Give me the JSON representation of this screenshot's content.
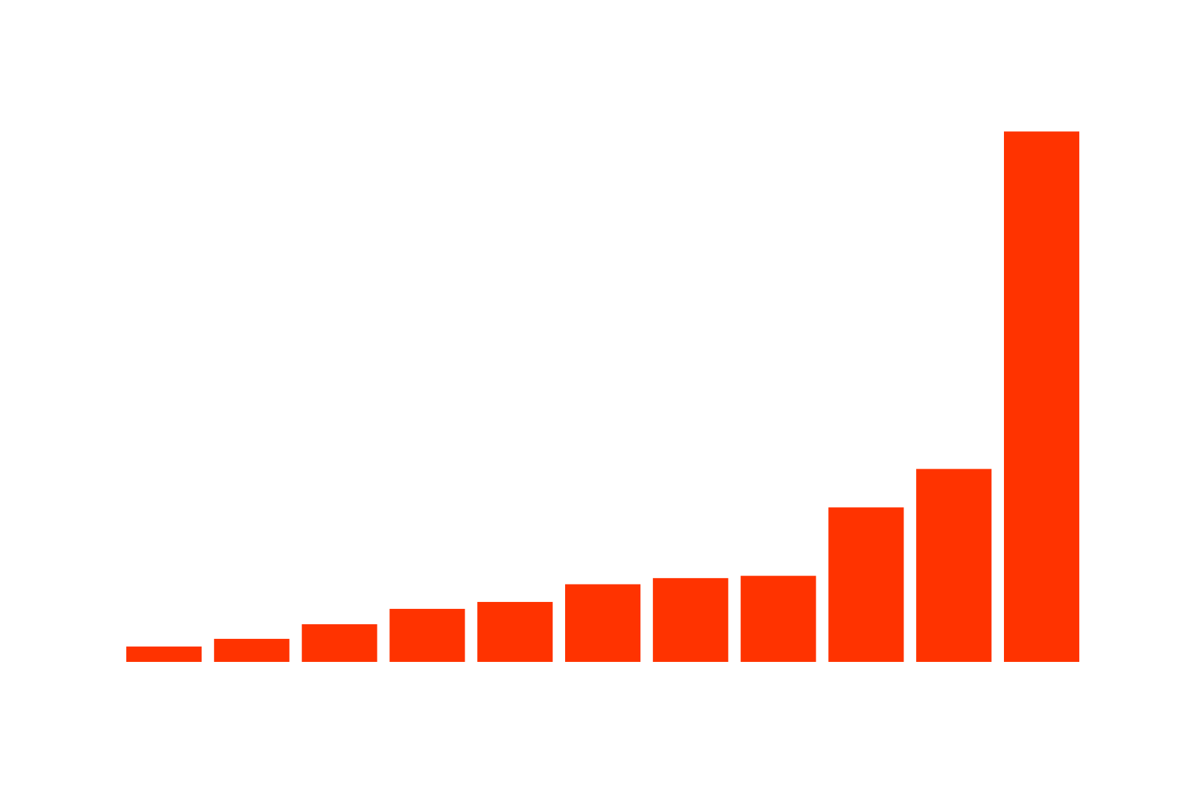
{
  "chart_data": {
    "type": "bar",
    "values": [
      20,
      30,
      49,
      69,
      78,
      101,
      109,
      112,
      201,
      251,
      690
    ],
    "color": "#ff3300",
    "ylim": [
      0,
      690
    ]
  }
}
